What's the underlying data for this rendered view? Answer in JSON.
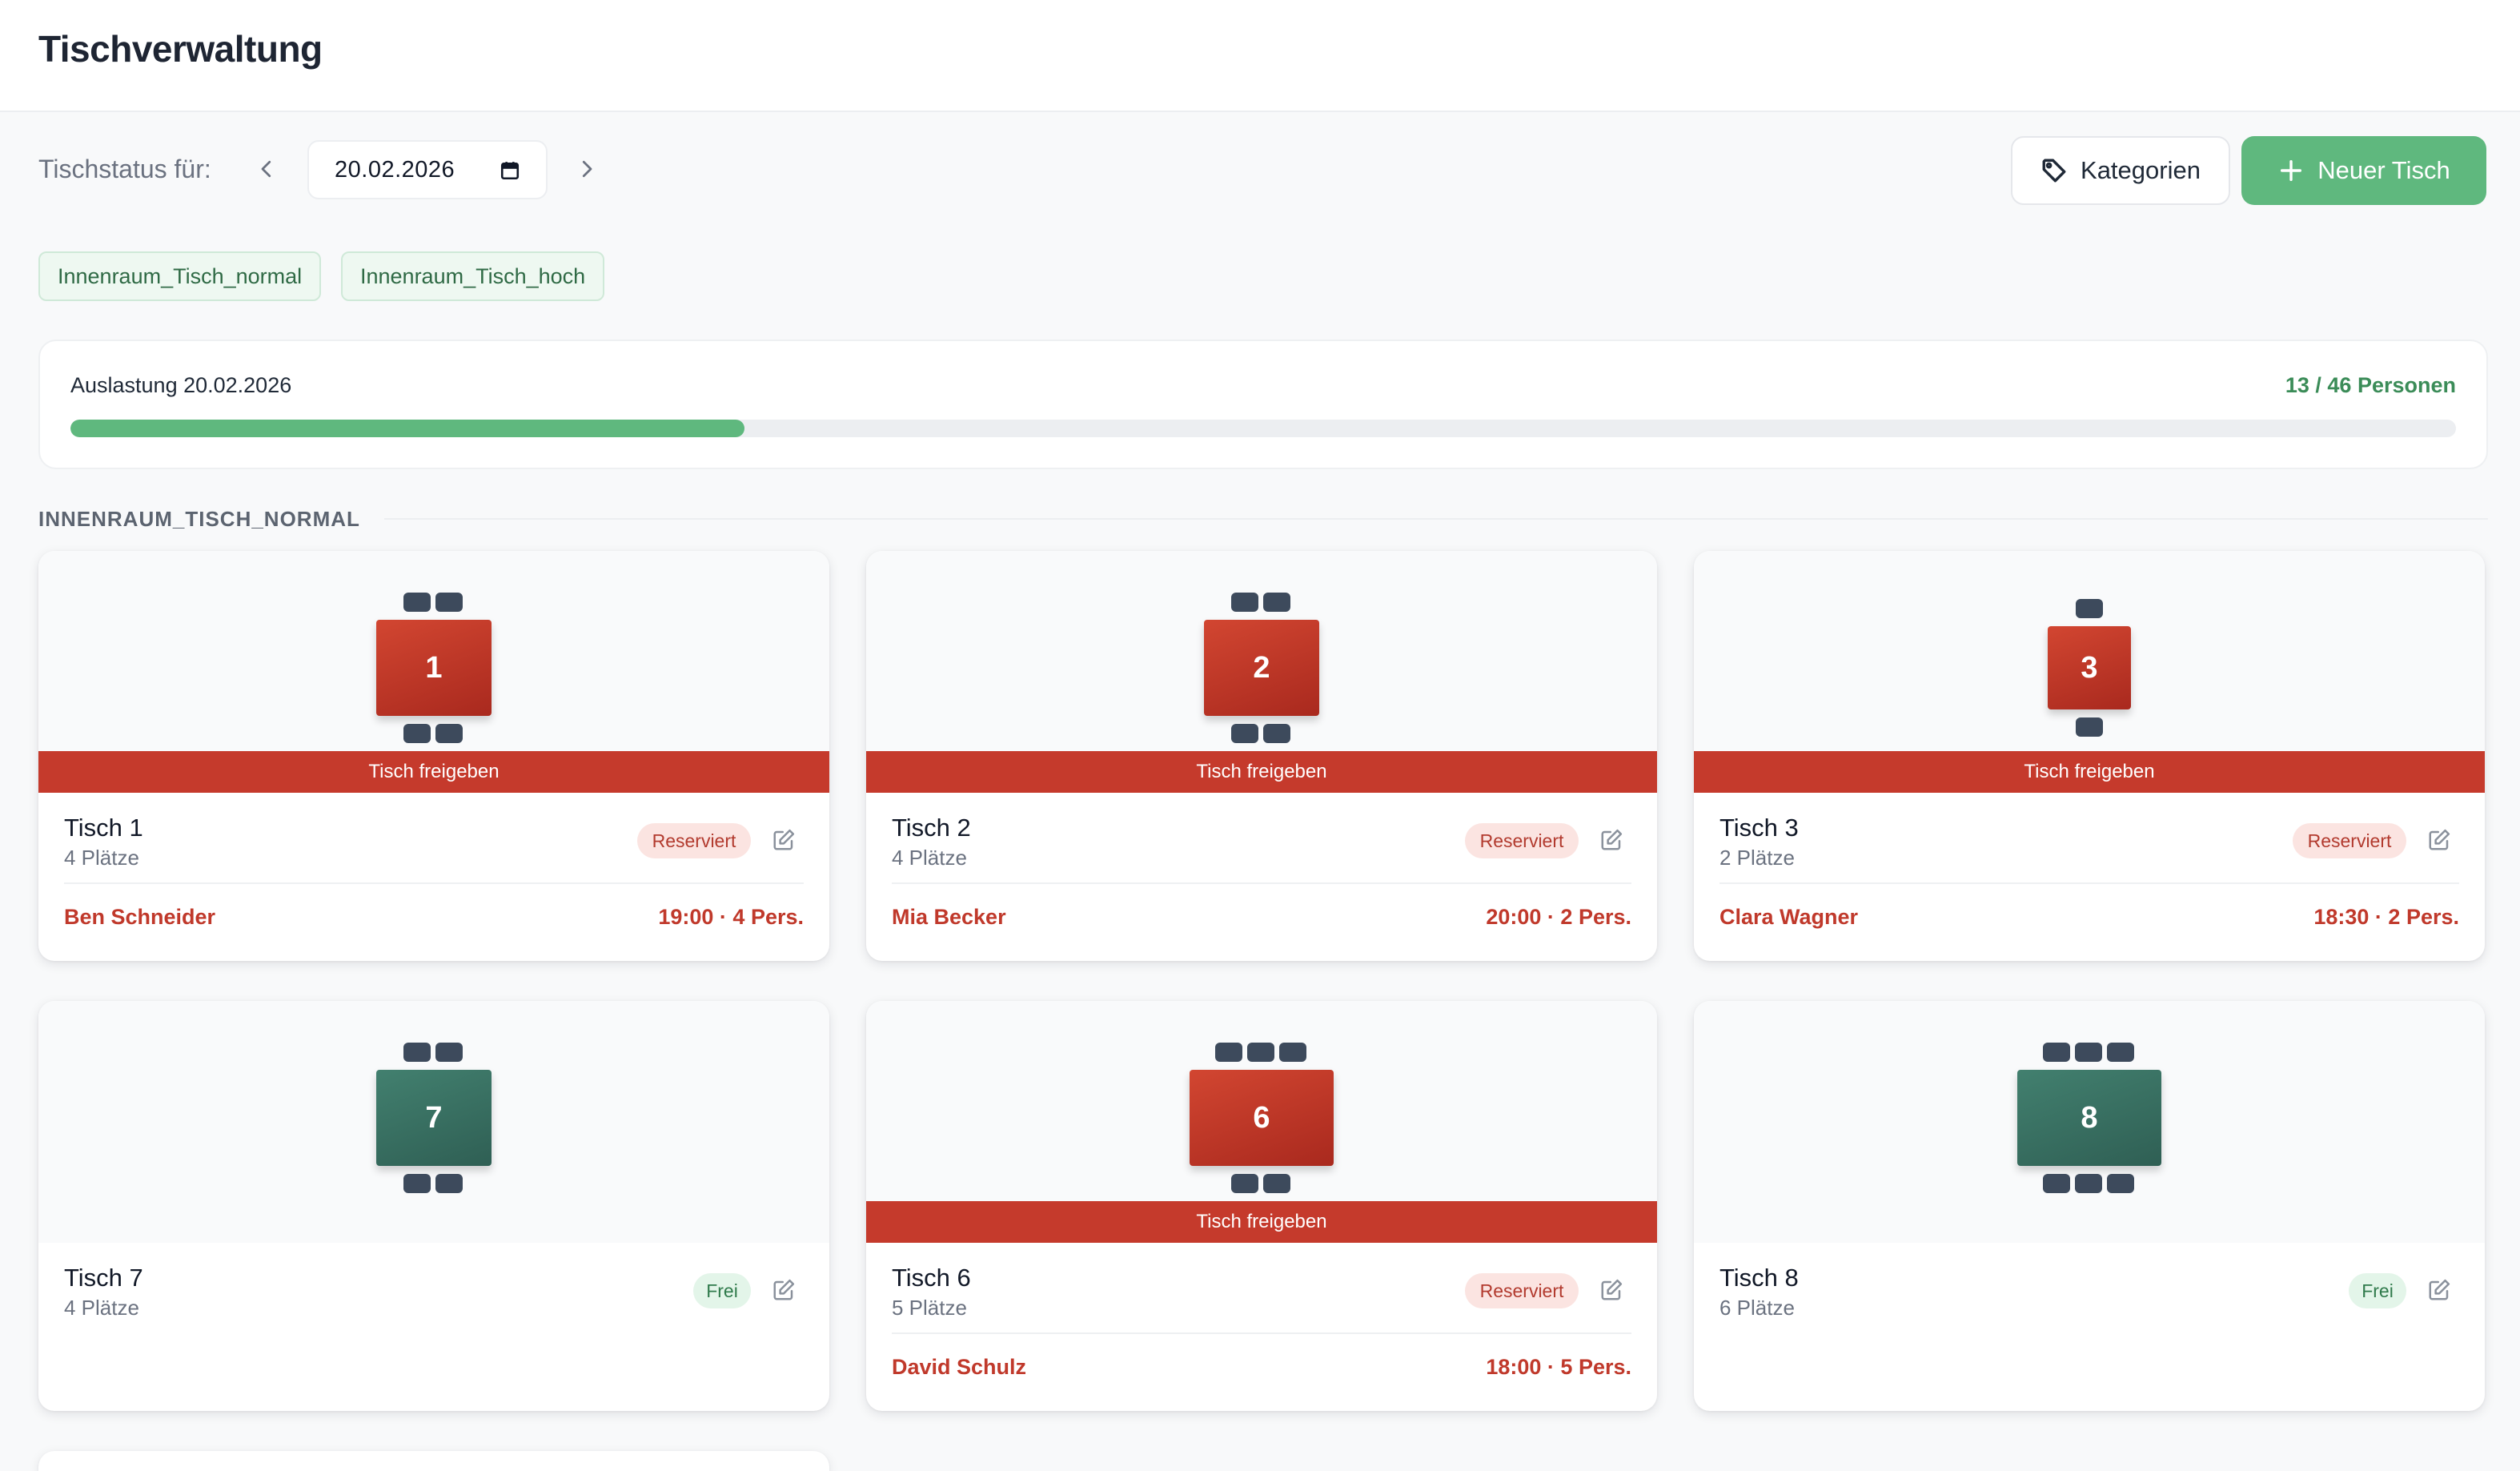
{
  "header": {
    "title": "Tischverwaltung"
  },
  "toolbar": {
    "status_label": "Tischstatus für:",
    "date": "20.02.2026",
    "categories_label": "Kategorien",
    "new_table_label": "Neuer Tisch"
  },
  "categories": [
    "Innenraum_Tisch_normal",
    "Innenraum_Tisch_hoch"
  ],
  "utilization": {
    "label": "Auslastung 20.02.2026",
    "count": "13 / 46 Personen",
    "fill_fraction": 0.2826
  },
  "section": {
    "title": "INNENRAUM_TISCH_NORMAL"
  },
  "release_label": "Tisch freigeben",
  "tables": [
    {
      "number": "1",
      "name": "Tisch 1",
      "seats": "4 Plätze",
      "status": "Reserviert",
      "guest": "Ben Schneider",
      "time": "19:00 · 4 Pers."
    },
    {
      "number": "2",
      "name": "Tisch 2",
      "seats": "4 Plätze",
      "status": "Reserviert",
      "guest": "Mia Becker",
      "time": "20:00 · 2 Pers."
    },
    {
      "number": "3",
      "name": "Tisch 3",
      "seats": "2 Plätze",
      "status": "Reserviert",
      "guest": "Clara Wagner",
      "time": "18:30 · 2 Pers."
    },
    {
      "number": "7",
      "name": "Tisch 7",
      "seats": "4 Plätze",
      "status": "Frei"
    },
    {
      "number": "6",
      "name": "Tisch 6",
      "seats": "5 Plätze",
      "status": "Reserviert",
      "guest": "David Schulz",
      "time": "18:00 · 5 Pers."
    },
    {
      "number": "8",
      "name": "Tisch 8",
      "seats": "6 Plätze",
      "status": "Frei"
    }
  ],
  "colors": {
    "accent_green": "#5fb87e",
    "reserved_red": "#c53a2c",
    "free_table": "#2f5f54",
    "chair": "#3d4a5c"
  },
  "icons": {
    "prev": "chevron-left-icon",
    "next": "chevron-right-icon",
    "calendar": "calendar-icon",
    "categories": "tag-icon",
    "new_table": "plus-icon",
    "edit": "edit-icon"
  }
}
